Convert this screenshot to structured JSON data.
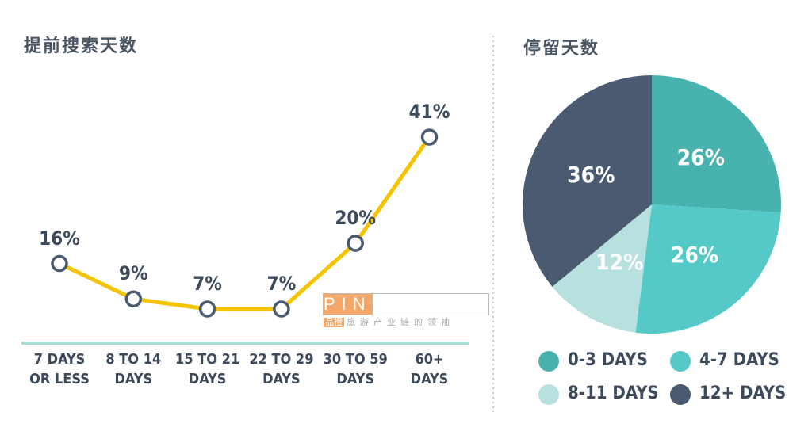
{
  "chart_data": [
    {
      "type": "line",
      "title": "提前搜索天数",
      "categories": [
        "7 DAYS\nOR LESS",
        "8 TO 14\nDAYS",
        "15 TO 21\nDAYS",
        "22 TO 29\nDAYS",
        "30 TO 59\nDAYS",
        "60+\nDAYS"
      ],
      "values": [
        16,
        9,
        7,
        7,
        20,
        41
      ],
      "value_labels": [
        "16%",
        "9%",
        "7%",
        "7%",
        "20%",
        "41%"
      ],
      "color": "#f5c400"
    },
    {
      "type": "pie",
      "title": "停留天数",
      "categories": [
        "0-3 DAYS",
        "4-7 DAYS",
        "8-11 DAYS",
        "12+ DAYS"
      ],
      "values": [
        26,
        26,
        12,
        36
      ],
      "value_labels": [
        "26%",
        "26%",
        "12%",
        "36%"
      ],
      "colors": [
        "#48b3ae",
        "#55c8c8",
        "#b6e1df",
        "#4a5a70"
      ]
    }
  ],
  "watermark": {
    "brand": "PINCHAIN",
    "brand_cn": "品橙",
    "tagline": "旅游产业链的领袖"
  }
}
